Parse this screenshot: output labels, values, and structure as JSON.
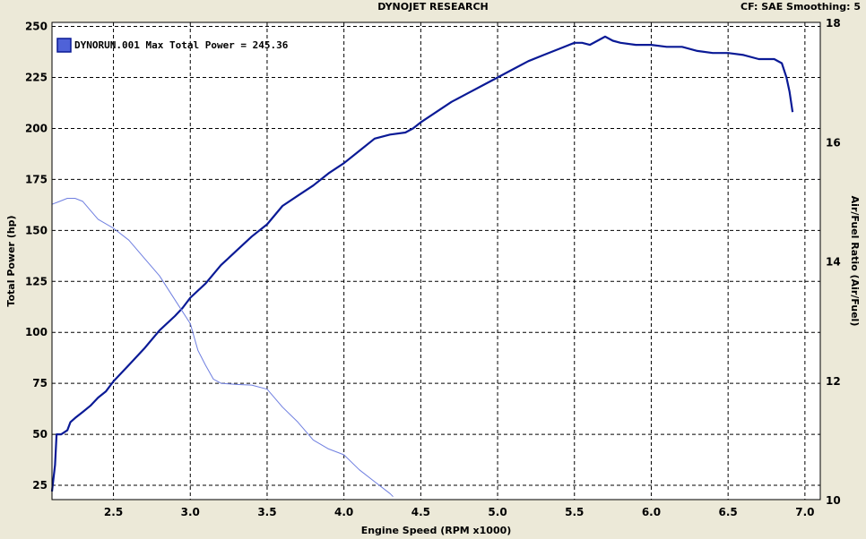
{
  "header": {
    "title": "DYNOJET RESEARCH",
    "cf_info": "CF: SAE  Smoothing: 5"
  },
  "legend": {
    "text": "DYNORUN.001 Max Total Power = 245.36"
  },
  "colors": {
    "power": "#0a1a96",
    "afr": "#6f7fe0",
    "plot_bg": "#ffffff",
    "grid": "#000000"
  },
  "chart_data": {
    "type": "line",
    "xlabel": "Engine Speed (RPM x1000)",
    "ylabel": "Total Power (hp)",
    "y2label": "Air/Fuel Ratio (Air/Fuel)",
    "xlim": [
      2.1,
      7.1
    ],
    "ylim": [
      18,
      252
    ],
    "y2lim": [
      10,
      18
    ],
    "x_ticks": [
      "2.5",
      "3.0",
      "3.5",
      "4.0",
      "4.5",
      "5.0",
      "5.5",
      "6.0",
      "6.5",
      "7.0"
    ],
    "y_ticks": [
      "25",
      "50",
      "75",
      "100",
      "125",
      "150",
      "175",
      "200",
      "225",
      "250"
    ],
    "y2_ticks": [
      "10",
      "12",
      "14",
      "16",
      "18"
    ],
    "grid": true,
    "legend_position": "top-left",
    "series": [
      {
        "name": "DYNORUN.001",
        "axis": "left",
        "x": [
          2.1,
          2.12,
          2.13,
          2.16,
          2.2,
          2.22,
          2.25,
          2.3,
          2.35,
          2.4,
          2.45,
          2.5,
          2.6,
          2.7,
          2.8,
          2.9,
          2.95,
          3.0,
          3.1,
          3.2,
          3.3,
          3.4,
          3.5,
          3.6,
          3.7,
          3.8,
          3.9,
          4.0,
          4.1,
          4.2,
          4.3,
          4.4,
          4.45,
          4.5,
          4.6,
          4.7,
          4.8,
          4.9,
          5.0,
          5.1,
          5.2,
          5.3,
          5.4,
          5.5,
          5.55,
          5.6,
          5.65,
          5.7,
          5.75,
          5.8,
          5.9,
          6.0,
          6.1,
          6.2,
          6.3,
          6.4,
          6.5,
          6.6,
          6.7,
          6.8,
          6.85,
          6.88,
          6.9,
          6.92
        ],
        "y": [
          22,
          35,
          50,
          50,
          52,
          56,
          58,
          61,
          64,
          68,
          71,
          76,
          84,
          92,
          101,
          108,
          112,
          117,
          124,
          133,
          140,
          147,
          153,
          162,
          167,
          172,
          178,
          183,
          189,
          195,
          197,
          198,
          200,
          203,
          208,
          213,
          217,
          221,
          225,
          229,
          233,
          236,
          239,
          242,
          242,
          241,
          243,
          245,
          243,
          242,
          241,
          241,
          240,
          240,
          238,
          237,
          237,
          236,
          234,
          234,
          232,
          225,
          218,
          208
        ]
      },
      {
        "name": "Air/Fuel",
        "axis": "right",
        "x": [
          2.1,
          2.15,
          2.2,
          2.25,
          2.3,
          2.35,
          2.4,
          2.5,
          2.6,
          2.7,
          2.8,
          2.9,
          3.0,
          3.05,
          3.1,
          3.15,
          3.2,
          3.3,
          3.4,
          3.5,
          3.6,
          3.7,
          3.8,
          3.9,
          4.0,
          4.1,
          4.2,
          4.3,
          4.32
        ],
        "y": [
          14.95,
          15.0,
          15.05,
          15.05,
          15.0,
          14.85,
          14.7,
          14.55,
          14.35,
          14.05,
          13.75,
          13.35,
          12.95,
          12.5,
          12.25,
          12.02,
          11.95,
          11.93,
          11.92,
          11.85,
          11.55,
          11.3,
          11.0,
          10.85,
          10.75,
          10.5,
          10.3,
          10.1,
          10.05
        ]
      }
    ]
  }
}
